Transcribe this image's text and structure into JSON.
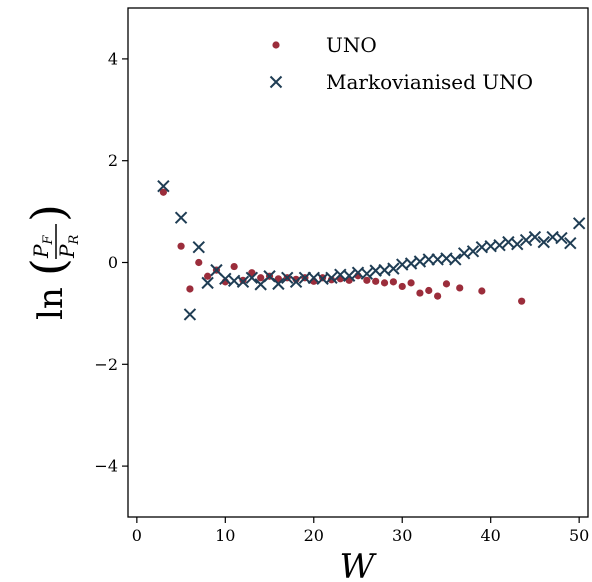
{
  "chart_data": {
    "type": "scatter",
    "xlabel": "W",
    "ylabel": {
      "prefix": "ln",
      "numerator": "P",
      "numerator_sub": "F",
      "denominator": "P",
      "denominator_sub": "R"
    },
    "xlim": [
      -1,
      51
    ],
    "ylim": [
      -5,
      5
    ],
    "xticks": [
      0,
      10,
      20,
      30,
      40,
      50
    ],
    "yticks": [
      -4,
      -2,
      0,
      2,
      4
    ],
    "xtick_labels": [
      "0",
      "10",
      "20",
      "30",
      "40",
      "50"
    ],
    "ytick_labels": [
      "−4",
      "−2",
      "0",
      "2",
      "4"
    ],
    "grid": false,
    "legend_position": "top-center",
    "series": [
      {
        "name": "UNO",
        "marker": "dot",
        "color": "#9b2d3b",
        "points": [
          [
            3,
            1.38
          ],
          [
            5,
            0.32
          ],
          [
            6,
            -0.52
          ],
          [
            7,
            0.0
          ],
          [
            8,
            -0.27
          ],
          [
            9,
            -0.15
          ],
          [
            10,
            -0.38
          ],
          [
            11,
            -0.08
          ],
          [
            12,
            -0.35
          ],
          [
            13,
            -0.2
          ],
          [
            14,
            -0.3
          ],
          [
            15,
            -0.27
          ],
          [
            16,
            -0.32
          ],
          [
            17,
            -0.3
          ],
          [
            18,
            -0.33
          ],
          [
            19,
            -0.3
          ],
          [
            20,
            -0.37
          ],
          [
            21,
            -0.3
          ],
          [
            22,
            -0.34
          ],
          [
            23,
            -0.32
          ],
          [
            24,
            -0.35
          ],
          [
            25,
            -0.26
          ],
          [
            26,
            -0.35
          ],
          [
            27,
            -0.37
          ],
          [
            28,
            -0.4
          ],
          [
            29,
            -0.38
          ],
          [
            30,
            -0.47
          ],
          [
            31,
            -0.4
          ],
          [
            32,
            -0.6
          ],
          [
            33,
            -0.55
          ],
          [
            34,
            -0.66
          ],
          [
            35,
            -0.42
          ],
          [
            36.5,
            -0.5
          ],
          [
            39,
            -0.56
          ],
          [
            43.5,
            -0.76
          ]
        ]
      },
      {
        "name": "Markovianised UNO",
        "marker": "x",
        "color": "#1f3d54",
        "points": [
          [
            3,
            1.5
          ],
          [
            5,
            0.88
          ],
          [
            6,
            -1.02
          ],
          [
            7,
            0.3
          ],
          [
            8,
            -0.4
          ],
          [
            9,
            -0.15
          ],
          [
            10,
            -0.32
          ],
          [
            11,
            -0.36
          ],
          [
            12,
            -0.38
          ],
          [
            13,
            -0.3
          ],
          [
            14,
            -0.43
          ],
          [
            15,
            -0.27
          ],
          [
            16,
            -0.42
          ],
          [
            17,
            -0.3
          ],
          [
            18,
            -0.38
          ],
          [
            19,
            -0.3
          ],
          [
            20,
            -0.3
          ],
          [
            21,
            -0.32
          ],
          [
            22,
            -0.3
          ],
          [
            23,
            -0.24
          ],
          [
            24,
            -0.26
          ],
          [
            25,
            -0.2
          ],
          [
            26,
            -0.22
          ],
          [
            27,
            -0.16
          ],
          [
            28,
            -0.15
          ],
          [
            29,
            -0.12
          ],
          [
            30,
            -0.04
          ],
          [
            31,
            -0.02
          ],
          [
            32,
            0.02
          ],
          [
            33,
            0.06
          ],
          [
            34,
            0.06
          ],
          [
            35,
            0.08
          ],
          [
            36,
            0.06
          ],
          [
            37,
            0.18
          ],
          [
            38,
            0.22
          ],
          [
            39,
            0.3
          ],
          [
            40,
            0.32
          ],
          [
            41,
            0.34
          ],
          [
            42,
            0.4
          ],
          [
            43,
            0.36
          ],
          [
            44,
            0.44
          ],
          [
            45,
            0.5
          ],
          [
            46,
            0.4
          ],
          [
            47,
            0.5
          ],
          [
            48,
            0.48
          ],
          [
            49,
            0.38
          ],
          [
            50,
            0.77
          ]
        ]
      }
    ]
  }
}
